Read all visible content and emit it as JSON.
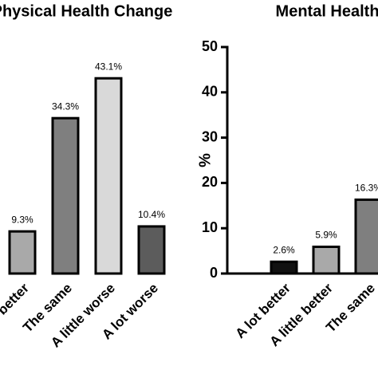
{
  "chart_data": [
    {
      "type": "bar",
      "title": "Physical Health Change",
      "categories": [
        "A little better",
        "The same",
        "A little worse",
        "A lot worse"
      ],
      "values": [
        9.3,
        34.3,
        43.1,
        10.4
      ],
      "value_labels": [
        "9.3%",
        "34.3%",
        "43.1%",
        "10.4%"
      ],
      "colors": [
        "#a9a9a9",
        "#7f7f7f",
        "#d9d9d9",
        "#5c5c5c"
      ],
      "ylim": [
        0,
        50
      ]
    },
    {
      "type": "bar",
      "title": "Mental Health Change",
      "ylabel": "%",
      "categories": [
        "A lot better",
        "A little better",
        "The same"
      ],
      "values": [
        2.6,
        5.9,
        16.3
      ],
      "value_labels": [
        "2.6%",
        "5.9%",
        "16.3%"
      ],
      "colors": [
        "#111111",
        "#a9a9a9",
        "#7f7f7f"
      ],
      "ylim": [
        0,
        50
      ],
      "yticks": [
        0,
        10,
        20,
        30,
        40,
        50
      ]
    }
  ]
}
